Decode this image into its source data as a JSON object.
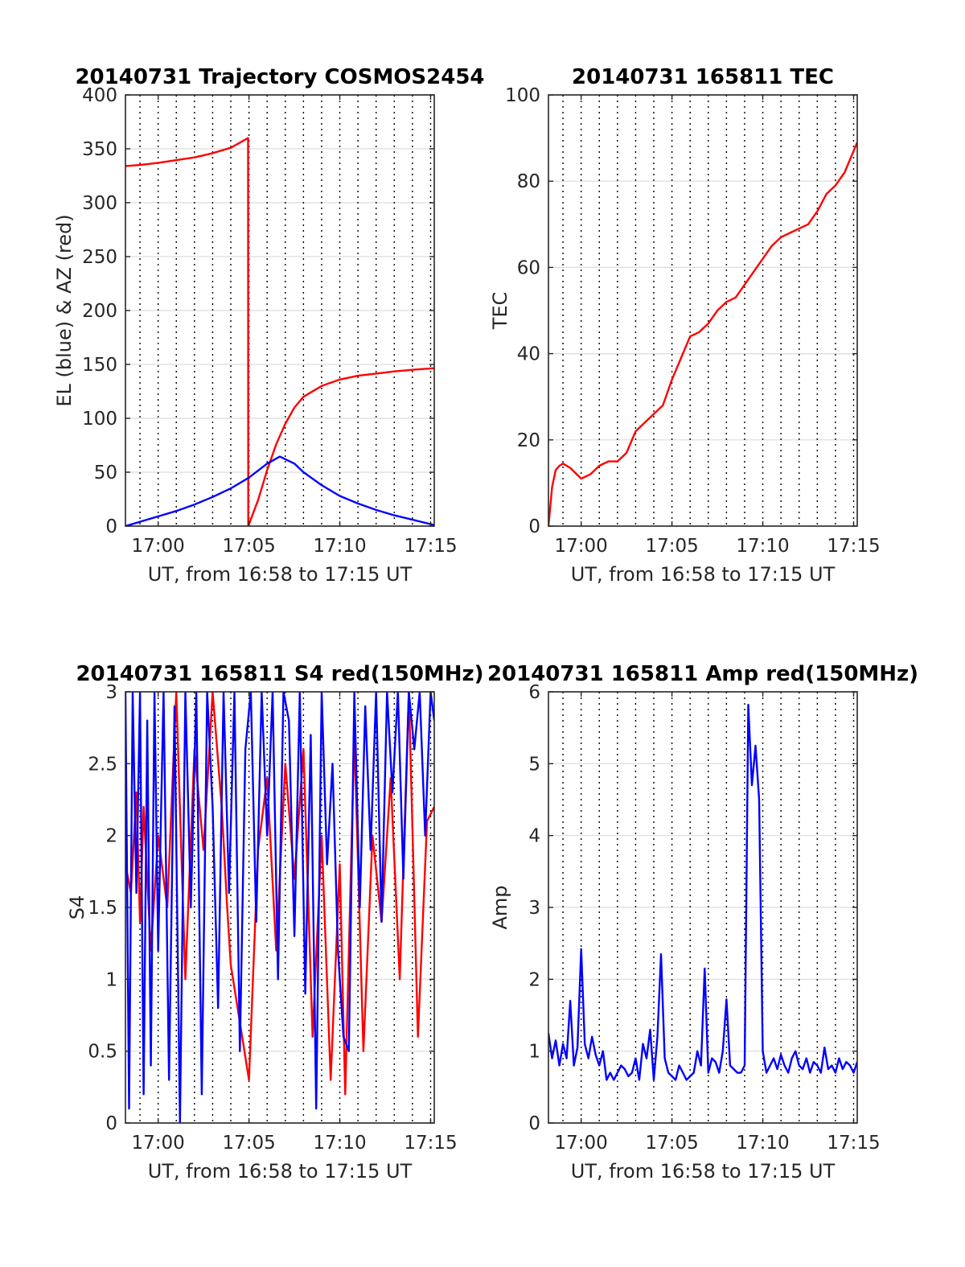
{
  "chart_data": [
    {
      "type": "line",
      "title": "20140731 Trajectory COSMOS2454",
      "xlabel": "UT, from 16:58 to 17:15 UT",
      "ylabel": "EL (blue) & AZ (red)",
      "xlim": [
        -1.8,
        15.2
      ],
      "ylim": [
        0,
        400
      ],
      "xticks": [
        0,
        5,
        10,
        15
      ],
      "xticklabels": [
        "17:00",
        "17:05",
        "17:10",
        "17:15"
      ],
      "yticks": [
        0,
        50,
        100,
        150,
        200,
        250,
        300,
        350,
        400
      ],
      "yticklabels": [
        "0",
        "50",
        "100",
        "150",
        "200",
        "250",
        "300",
        "350",
        "400"
      ],
      "grid": true,
      "series": [
        {
          "color": "#ff0000",
          "x": [
            -1.8,
            -1,
            0,
            1,
            2,
            3,
            4,
            4.95,
            4.96,
            5.5,
            6,
            6.5,
            7,
            7.5,
            8,
            9,
            10,
            11,
            12,
            13,
            14,
            15.2
          ],
          "values": [
            334,
            335,
            337,
            339.5,
            342,
            346,
            351,
            360,
            0,
            24,
            52,
            76,
            95,
            110,
            120,
            130,
            136,
            139.5,
            141.5,
            143.5,
            145,
            146.5
          ]
        },
        {
          "color": "#0000ff",
          "x": [
            -1.8,
            -1,
            0,
            1,
            2,
            3,
            4,
            5,
            6,
            6.7,
            7.5,
            8,
            9,
            10,
            11,
            12,
            13,
            14,
            15.2
          ],
          "values": [
            0,
            4,
            9,
            14,
            20,
            27,
            35,
            45,
            58,
            64.5,
            58,
            50,
            38,
            28,
            21,
            15,
            10,
            6,
            1
          ]
        }
      ]
    },
    {
      "type": "line",
      "title": "20140731 165811 TEC",
      "xlabel": "UT, from 16:58 to 17:15 UT",
      "ylabel": "TEC",
      "xlim": [
        -1.8,
        15.2
      ],
      "ylim": [
        0,
        100
      ],
      "xticks": [
        0,
        5,
        10,
        15
      ],
      "xticklabels": [
        "17:00",
        "17:05",
        "17:10",
        "17:15"
      ],
      "yticks": [
        0,
        20,
        40,
        60,
        80,
        100
      ],
      "yticklabels": [
        "0",
        "20",
        "40",
        "60",
        "80",
        "100"
      ],
      "grid": true,
      "series": [
        {
          "color": "#ff0000",
          "x": [
            -1.8,
            -1.6,
            -1.4,
            -1.2,
            -1,
            -0.6,
            0,
            0.5,
            1,
            1.5,
            2,
            2.5,
            3,
            4,
            4.5,
            5,
            5.5,
            6,
            6.5,
            7,
            7.5,
            8,
            8.5,
            9,
            9.5,
            10,
            10.5,
            11,
            11.5,
            12,
            12.5,
            13,
            13.5,
            14,
            14.5,
            15.2
          ],
          "values": [
            0,
            9,
            13,
            14,
            14.5,
            13.5,
            11,
            12,
            14,
            15,
            15,
            17,
            22,
            26,
            28,
            34,
            39,
            44,
            45,
            47,
            50,
            52,
            53,
            56,
            59,
            62,
            65,
            67,
            68,
            69,
            70,
            73,
            77,
            79,
            82,
            89
          ]
        }
      ]
    },
    {
      "type": "line",
      "title": "20140731 165811 S4 red(150MHz)",
      "xlabel": "UT, from 16:58 to 17:15 UT",
      "ylabel": "S4",
      "xlim": [
        -1.8,
        15.2
      ],
      "ylim": [
        0,
        3
      ],
      "xticks": [
        0,
        5,
        10,
        15
      ],
      "xticklabels": [
        "17:00",
        "17:05",
        "17:10",
        "17:15"
      ],
      "yticks": [
        0,
        0.5,
        1,
        1.5,
        2,
        2.5,
        3
      ],
      "yticklabels": [
        "0",
        "0.5",
        "1",
        "1.5",
        "2",
        "2.5",
        "3"
      ],
      "grid": true,
      "series": [
        {
          "color": "#ff0000",
          "x": [
            -1.8,
            -1.5,
            -1.2,
            -1,
            -0.8,
            -0.4,
            0,
            0.5,
            1,
            1.5,
            2,
            2.5,
            3,
            3.5,
            3.8,
            4,
            4.5,
            5,
            5.5,
            6,
            6.5,
            7,
            7.5,
            8,
            8.5,
            9,
            9.5,
            10,
            10.3,
            10.8,
            11.3,
            11.8,
            12.3,
            12.8,
            13.3,
            13.8,
            14.3,
            14.8,
            15.2
          ],
          "values": [
            1.8,
            1.6,
            2.3,
            1.4,
            2.2,
            1.2,
            2.0,
            1.5,
            3.0,
            1.0,
            2.6,
            1.9,
            3.0,
            2.2,
            1.5,
            1.1,
            0.7,
            0.3,
            1.9,
            2.4,
            1.2,
            2.5,
            1.7,
            2.6,
            0.6,
            2.0,
            0.3,
            1.8,
            0.2,
            2.7,
            0.5,
            2.0,
            1.4,
            2.4,
            1.0,
            3.0,
            0.6,
            2.1,
            2.2
          ]
        },
        {
          "color": "#0000ff",
          "x": [
            -1.8,
            -1.6,
            -1.4,
            -1.2,
            -1,
            -0.8,
            -0.6,
            -0.4,
            -0.2,
            0,
            0.3,
            0.6,
            0.9,
            1.2,
            1.5,
            1.8,
            2.1,
            2.4,
            2.7,
            3,
            3.3,
            3.6,
            3.9,
            4.2,
            4.5,
            4.8,
            5.1,
            5.4,
            5.7,
            6,
            6.3,
            6.6,
            6.9,
            7.2,
            7.5,
            7.8,
            8.1,
            8.4,
            8.7,
            9,
            9.3,
            9.6,
            9.9,
            10.2,
            10.5,
            10.8,
            11.1,
            11.4,
            11.7,
            12,
            12.3,
            12.6,
            12.9,
            13.2,
            13.5,
            13.8,
            14.1,
            14.4,
            14.7,
            15,
            15.2
          ],
          "values": [
            3.0,
            0.1,
            3.0,
            1.6,
            3.0,
            0.2,
            2.8,
            0.4,
            3.0,
            1.2,
            3.0,
            0.3,
            2.9,
            0.0,
            3.0,
            1.5,
            3.0,
            0.2,
            3.0,
            2.2,
            0.8,
            3.0,
            1.6,
            3.0,
            0.5,
            2.6,
            3.0,
            1.4,
            3.0,
            2.0,
            3.0,
            1.0,
            3.0,
            2.8,
            1.3,
            3.0,
            0.9,
            2.7,
            0.1,
            3.0,
            1.8,
            2.5,
            1.2,
            0.6,
            0.5,
            3.0,
            1.5,
            2.9,
            1.9,
            3.0,
            1.4,
            3.0,
            2.3,
            3.0,
            1.7,
            3.0,
            2.6,
            3.0,
            2.0,
            3.0,
            2.8
          ]
        }
      ]
    },
    {
      "type": "line",
      "title": "20140731 165811 Amp red(150MHz)",
      "xlabel": "UT, from 16:58 to 17:15 UT",
      "ylabel": "Amp",
      "xlim": [
        -1.8,
        15.2
      ],
      "ylim": [
        0,
        6
      ],
      "xticks": [
        0,
        5,
        10,
        15
      ],
      "xticklabels": [
        "17:00",
        "17:05",
        "17:10",
        "17:15"
      ],
      "yticks": [
        0,
        1,
        2,
        3,
        4,
        5,
        6
      ],
      "yticklabels": [
        "0",
        "1",
        "2",
        "3",
        "4",
        "5",
        "6"
      ],
      "grid": true,
      "series": [
        {
          "color": "#0000ff",
          "x": [
            -1.8,
            -1.6,
            -1.4,
            -1.2,
            -1,
            -0.8,
            -0.6,
            -0.4,
            -0.2,
            0,
            0.2,
            0.4,
            0.6,
            0.8,
            1,
            1.2,
            1.4,
            1.6,
            1.8,
            2,
            2.2,
            2.4,
            2.6,
            2.8,
            3,
            3.2,
            3.4,
            3.6,
            3.8,
            4,
            4.2,
            4.4,
            4.6,
            4.8,
            5,
            5.2,
            5.4,
            5.6,
            5.8,
            6,
            6.2,
            6.4,
            6.6,
            6.8,
            7,
            7.2,
            7.4,
            7.6,
            7.8,
            8,
            8.2,
            8.4,
            8.6,
            8.8,
            9,
            9.2,
            9.4,
            9.6,
            9.8,
            10,
            10.2,
            10.4,
            10.6,
            10.8,
            11,
            11.2,
            11.4,
            11.6,
            11.8,
            12,
            12.2,
            12.4,
            12.6,
            12.8,
            13,
            13.2,
            13.4,
            13.6,
            13.8,
            14,
            14.2,
            14.4,
            14.6,
            14.8,
            15,
            15.2
          ],
          "values": [
            1.25,
            0.9,
            1.15,
            0.8,
            1.1,
            0.9,
            1.7,
            0.8,
            1.05,
            2.42,
            1.1,
            0.9,
            1.2,
            0.95,
            0.8,
            1.0,
            0.6,
            0.7,
            0.6,
            0.7,
            0.8,
            0.75,
            0.65,
            0.7,
            0.9,
            0.6,
            1.1,
            0.9,
            1.3,
            0.6,
            1.2,
            2.35,
            0.9,
            0.7,
            0.65,
            0.6,
            0.8,
            0.7,
            0.6,
            0.65,
            0.7,
            1.0,
            0.8,
            2.15,
            0.7,
            0.9,
            0.85,
            0.7,
            1.0,
            1.72,
            0.8,
            0.75,
            0.7,
            0.7,
            0.8,
            5.82,
            4.7,
            5.25,
            4.5,
            1.0,
            0.7,
            0.8,
            0.9,
            0.75,
            0.95,
            0.8,
            0.7,
            0.9,
            1.0,
            0.8,
            0.75,
            0.9,
            0.7,
            0.85,
            0.8,
            0.7,
            1.05,
            0.75,
            0.8,
            0.7,
            0.9,
            0.75,
            0.85,
            0.8,
            0.7,
            0.85
          ]
        }
      ]
    }
  ]
}
